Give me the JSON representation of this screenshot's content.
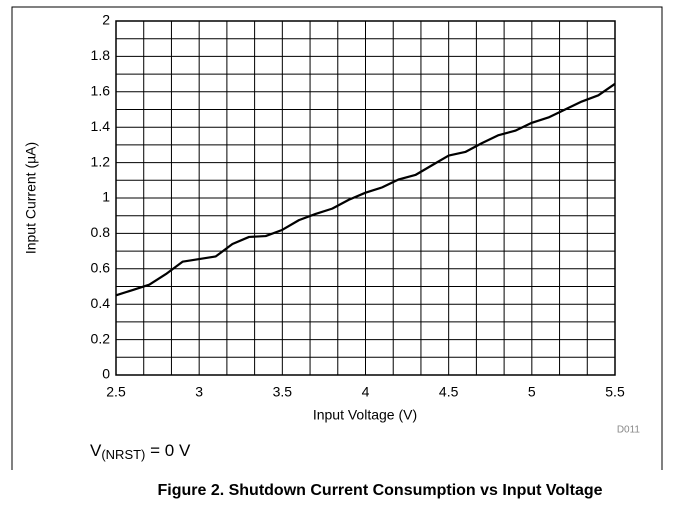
{
  "chart_data": {
    "type": "line",
    "x": [
      2.5,
      2.6,
      2.7,
      2.8,
      2.9,
      3.0,
      3.1,
      3.2,
      3.3,
      3.4,
      3.5,
      3.6,
      3.7,
      3.8,
      3.9,
      4.0,
      4.1,
      4.2,
      4.3,
      4.4,
      4.5,
      4.6,
      4.7,
      4.8,
      4.9,
      5.0,
      5.1,
      5.2,
      5.3,
      5.4,
      5.5
    ],
    "series": [
      {
        "color": "#000000",
        "values": [
          0.45,
          0.48,
          0.51,
          0.57,
          0.64,
          0.655,
          0.67,
          0.74,
          0.78,
          0.785,
          0.82,
          0.875,
          0.91,
          0.94,
          0.99,
          1.03,
          1.06,
          1.105,
          1.13,
          1.185,
          1.24,
          1.26,
          1.31,
          1.355,
          1.38,
          1.425,
          1.455,
          1.5,
          1.545,
          1.58,
          1.645
        ]
      }
    ],
    "xlim": [
      2.5,
      5.5
    ],
    "xticks": [
      2.5,
      3,
      3.5,
      4,
      4.5,
      5,
      5.5
    ],
    "ylim": [
      0,
      2
    ],
    "yticks": [
      0,
      0.2,
      0.4,
      0.6,
      0.8,
      1,
      1.2,
      1.4,
      1.6,
      1.8,
      2
    ],
    "grid": true,
    "xlabel": "Input Voltage (V)",
    "ylabel": "Input Current (µA)",
    "code": "D011",
    "annotation": {
      "main": "V",
      "sub": "(NRST)",
      "rest": " = 0 V"
    },
    "caption": "Figure 2. Shutdown Current Consumption vs Input Voltage"
  }
}
